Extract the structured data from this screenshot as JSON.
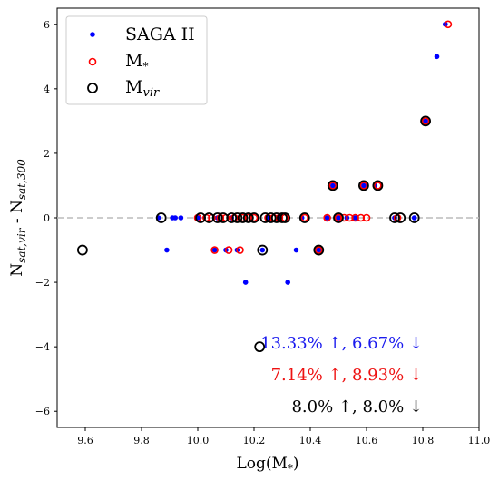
{
  "chart_data": {
    "type": "scatter",
    "title": "",
    "xlabel": "Log(M",
    "xlabel_sub": "*",
    "xlabel_end": ")",
    "ylabel": "N",
    "ylabel_sub1": "sat,vir",
    "ylabel_mid": " - N",
    "ylabel_sub2": "sat,300",
    "xlim": [
      9.5,
      11.0
    ],
    "ylim": [
      -6.5,
      6.5
    ],
    "xticks": [
      "9.6",
      "9.8",
      "10.0",
      "10.2",
      "10.4",
      "10.6",
      "10.8",
      "11.0"
    ],
    "yticks": [
      "−6",
      "−4",
      "−2",
      "0",
      "2",
      "4",
      "6"
    ],
    "reference_line": {
      "y": 0,
      "style": "dashed",
      "color": "#bbbbbb"
    },
    "legend": {
      "placement": "upper-left",
      "entries": [
        {
          "label": "SAGA II",
          "sub": "",
          "marker": "dot"
        },
        {
          "label": "M",
          "sub": "*",
          "marker": "red-ring"
        },
        {
          "label": "M",
          "sub": "vir",
          "marker": "black-ring"
        }
      ]
    },
    "series": [
      {
        "name": "SAGA II",
        "color": "#0000ff",
        "marker": "dot",
        "points": [
          [
            9.86,
            0
          ],
          [
            9.89,
            -1
          ],
          [
            9.91,
            0
          ],
          [
            9.92,
            0
          ],
          [
            9.94,
            0
          ],
          [
            10.0,
            0
          ],
          [
            10.06,
            -1
          ],
          [
            10.07,
            0
          ],
          [
            10.1,
            -1
          ],
          [
            10.12,
            0
          ],
          [
            10.14,
            -1
          ],
          [
            10.17,
            -2
          ],
          [
            10.19,
            0
          ],
          [
            10.23,
            -1
          ],
          [
            10.25,
            0
          ],
          [
            10.29,
            0
          ],
          [
            10.32,
            -2
          ],
          [
            10.35,
            -1
          ],
          [
            10.37,
            0
          ],
          [
            10.43,
            -1
          ],
          [
            10.46,
            0
          ],
          [
            10.48,
            1
          ],
          [
            10.5,
            0
          ],
          [
            10.53,
            0
          ],
          [
            10.56,
            0
          ],
          [
            10.59,
            1
          ],
          [
            10.63,
            1
          ],
          [
            10.7,
            0
          ],
          [
            10.77,
            0
          ],
          [
            10.81,
            3
          ],
          [
            10.85,
            5
          ],
          [
            10.88,
            6
          ]
        ]
      },
      {
        "name": "M*",
        "color": "#ff0000",
        "marker": "ring",
        "points": [
          [
            10.0,
            0
          ],
          [
            10.03,
            0
          ],
          [
            10.05,
            0
          ],
          [
            10.06,
            -1
          ],
          [
            10.08,
            0
          ],
          [
            10.1,
            0
          ],
          [
            10.11,
            -1
          ],
          [
            10.13,
            0
          ],
          [
            10.15,
            -1
          ],
          [
            10.16,
            0
          ],
          [
            10.18,
            0
          ],
          [
            10.2,
            0
          ],
          [
            10.25,
            0
          ],
          [
            10.27,
            0
          ],
          [
            10.29,
            0
          ],
          [
            10.31,
            0
          ],
          [
            10.38,
            0
          ],
          [
            10.43,
            -1
          ],
          [
            10.46,
            0
          ],
          [
            10.48,
            1
          ],
          [
            10.5,
            0
          ],
          [
            10.52,
            0
          ],
          [
            10.54,
            0
          ],
          [
            10.56,
            0
          ],
          [
            10.58,
            0
          ],
          [
            10.59,
            1
          ],
          [
            10.6,
            0
          ],
          [
            10.64,
            1
          ],
          [
            10.71,
            0
          ],
          [
            10.81,
            3
          ],
          [
            10.89,
            6
          ]
        ]
      },
      {
        "name": "Mvir",
        "color": "#000000",
        "marker": "ring",
        "points": [
          [
            9.59,
            -1
          ],
          [
            9.87,
            0
          ],
          [
            10.01,
            0
          ],
          [
            10.04,
            0
          ],
          [
            10.07,
            0
          ],
          [
            10.09,
            0
          ],
          [
            10.12,
            0
          ],
          [
            10.14,
            0
          ],
          [
            10.16,
            0
          ],
          [
            10.18,
            0
          ],
          [
            10.2,
            0
          ],
          [
            10.22,
            -4
          ],
          [
            10.23,
            -1
          ],
          [
            10.24,
            0
          ],
          [
            10.26,
            0
          ],
          [
            10.28,
            0
          ],
          [
            10.3,
            0
          ],
          [
            10.31,
            0
          ],
          [
            10.38,
            0
          ],
          [
            10.43,
            -1
          ],
          [
            10.48,
            1
          ],
          [
            10.5,
            0
          ],
          [
            10.59,
            1
          ],
          [
            10.64,
            1
          ],
          [
            10.7,
            0
          ],
          [
            10.72,
            0
          ],
          [
            10.77,
            0
          ],
          [
            10.81,
            3
          ]
        ]
      }
    ],
    "annotations": [
      {
        "text": "13.33% ↑, 6.67% ↓",
        "color": "#1a1aee"
      },
      {
        "text": "7.14% ↑, 8.93% ↓",
        "color": "#ee1111"
      },
      {
        "text": "8.0% ↑, 8.0% ↓",
        "color": "#000000"
      }
    ]
  }
}
